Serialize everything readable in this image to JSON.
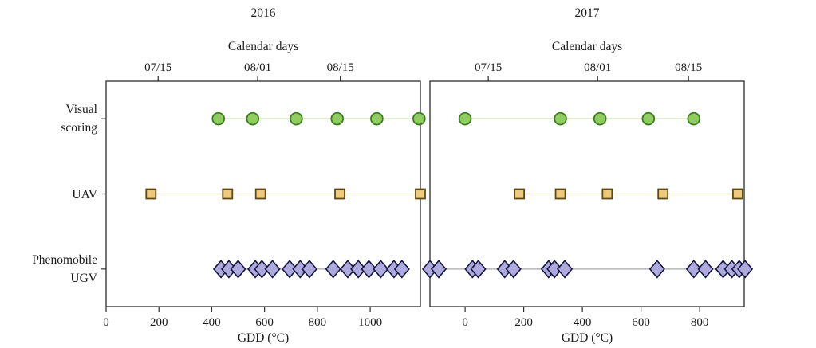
{
  "chart_data": {
    "type": "scatter",
    "description_note": "",
    "style": {
      "axis_color": "#2b2b2b",
      "text_color": "#1a1a1a",
      "background": "#ffffff"
    },
    "rows": [
      {
        "id": "visual_scoring",
        "label_line1": "Visual",
        "label_line2": "scoring",
        "marker": "circle",
        "fill": "#90cd60",
        "stroke": "#3c7d1f",
        "line_color": "#d7e4c2"
      },
      {
        "id": "uav",
        "label_line1": "UAV",
        "label_line2": "",
        "marker": "square",
        "fill": "#f0ca7c",
        "stroke": "#5c4a14",
        "line_color": "#f3ead0"
      },
      {
        "id": "phenomobile_ugv",
        "label_line1": "Phenomobile",
        "label_line2": "UGV",
        "marker": "diamond",
        "fill": "#aeaade",
        "stroke": "#15153d",
        "line_color": "#b4b4bf"
      }
    ],
    "panels": [
      {
        "year": "2016",
        "top_axis_label": "Calendar days",
        "bottom_axis_label": "GDD (°C)",
        "gdd_range": [
          0,
          1190
        ],
        "gdd_ticks": [
          0,
          200,
          400,
          600,
          800,
          1000
        ],
        "calendar_ticks": [
          {
            "label": "07/15",
            "gdd": 197
          },
          {
            "label": "08/01",
            "gdd": 574
          },
          {
            "label": "08/15",
            "gdd": 887
          }
        ],
        "series": {
          "visual_scoring": [
            425,
            555,
            720,
            875,
            1025,
            1185
          ],
          "uav": [
            170,
            460,
            585,
            885,
            1190
          ],
          "phenomobile_ugv": [
            435,
            465,
            500,
            565,
            590,
            630,
            695,
            735,
            770,
            860,
            915,
            955,
            995,
            1040,
            1090,
            1120
          ]
        }
      },
      {
        "year": "2017",
        "top_axis_label": "Calendar days",
        "bottom_axis_label": "GDD (°C)",
        "gdd_range": [
          -120,
          952
        ],
        "gdd_ticks": [
          0,
          200,
          400,
          600,
          800
        ],
        "calendar_ticks": [
          {
            "label": "07/15",
            "gdd": 79
          },
          {
            "label": "08/01",
            "gdd": 452
          },
          {
            "label": "08/15",
            "gdd": 762
          }
        ],
        "series": {
          "visual_scoring": [
            0,
            325,
            460,
            625,
            780
          ],
          "uav": [
            185,
            325,
            485,
            675,
            930
          ],
          "phenomobile_ugv": [
            -120,
            -90,
            25,
            45,
            135,
            165,
            285,
            305,
            340,
            655,
            780,
            820,
            880,
            910,
            935,
            955
          ]
        }
      }
    ]
  }
}
